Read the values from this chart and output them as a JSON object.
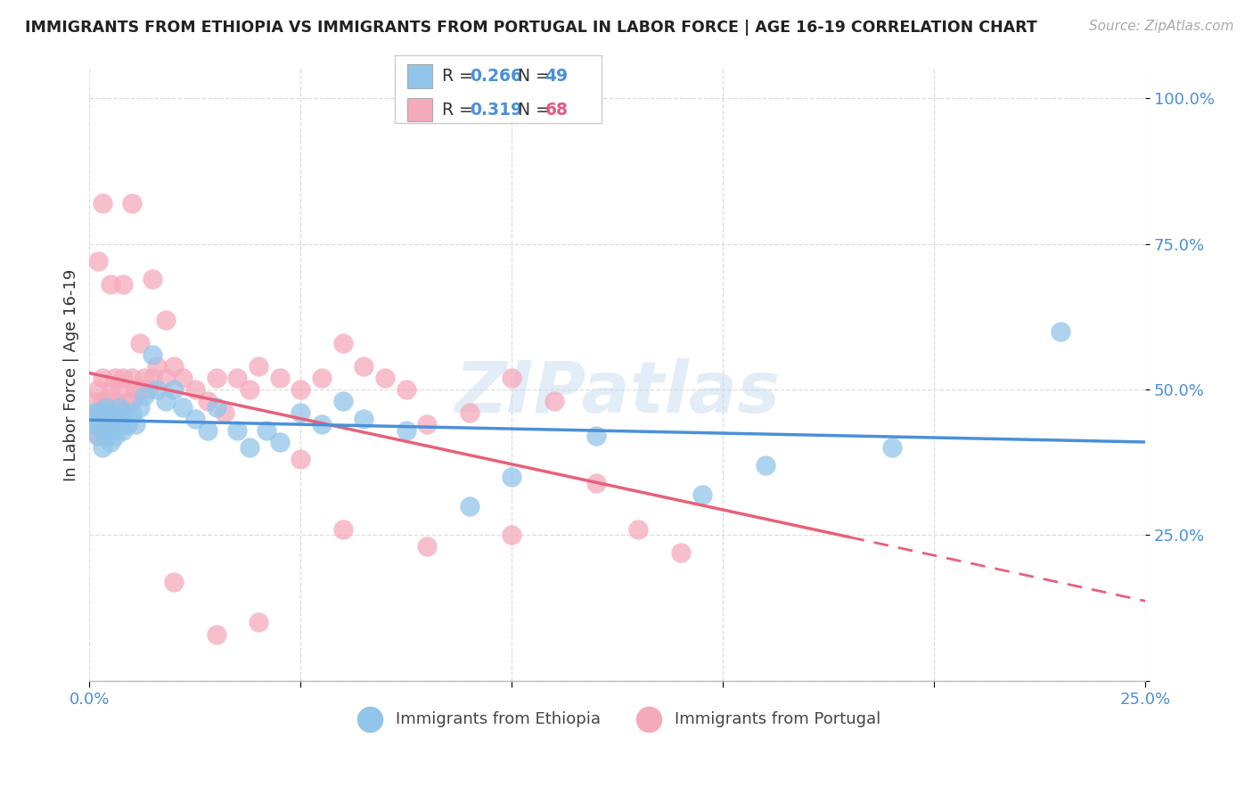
{
  "title": "IMMIGRANTS FROM ETHIOPIA VS IMMIGRANTS FROM PORTUGAL IN LABOR FORCE | AGE 16-19 CORRELATION CHART",
  "source": "Source: ZipAtlas.com",
  "ylabel": "In Labor Force | Age 16-19",
  "xlim": [
    0.0,
    0.25
  ],
  "ylim": [
    0.0,
    1.05
  ],
  "yticks": [
    0.0,
    0.25,
    0.5,
    0.75,
    1.0
  ],
  "ytick_labels": [
    "",
    "25.0%",
    "50.0%",
    "75.0%",
    "100.0%"
  ],
  "xticks": [
    0.0,
    0.05,
    0.1,
    0.15,
    0.2,
    0.25
  ],
  "xtick_labels": [
    "0.0%",
    "",
    "",
    "",
    "",
    "25.0%"
  ],
  "color_ethiopia": "#92C5EA",
  "color_portugal": "#F5AABB",
  "color_line_ethiopia": "#4A90D9",
  "color_line_portugal": "#E8607A",
  "watermark": "ZIPatlas",
  "ethiopia_x": [
    0.001,
    0.001,
    0.002,
    0.002,
    0.002,
    0.003,
    0.003,
    0.003,
    0.004,
    0.004,
    0.004,
    0.005,
    0.005,
    0.005,
    0.006,
    0.006,
    0.007,
    0.007,
    0.008,
    0.008,
    0.009,
    0.01,
    0.011,
    0.012,
    0.013,
    0.015,
    0.016,
    0.018,
    0.02,
    0.022,
    0.025,
    0.028,
    0.03,
    0.035,
    0.038,
    0.042,
    0.045,
    0.05,
    0.055,
    0.06,
    0.065,
    0.075,
    0.09,
    0.1,
    0.12,
    0.145,
    0.16,
    0.19,
    0.23
  ],
  "ethiopia_y": [
    0.44,
    0.46,
    0.42,
    0.44,
    0.46,
    0.4,
    0.43,
    0.46,
    0.42,
    0.44,
    0.47,
    0.41,
    0.43,
    0.46,
    0.42,
    0.45,
    0.44,
    0.47,
    0.43,
    0.46,
    0.44,
    0.46,
    0.44,
    0.47,
    0.49,
    0.56,
    0.5,
    0.48,
    0.5,
    0.47,
    0.45,
    0.43,
    0.47,
    0.43,
    0.4,
    0.43,
    0.41,
    0.46,
    0.44,
    0.48,
    0.45,
    0.43,
    0.3,
    0.35,
    0.42,
    0.32,
    0.37,
    0.4,
    0.6
  ],
  "portugal_x": [
    0.001,
    0.001,
    0.002,
    0.002,
    0.002,
    0.003,
    0.003,
    0.003,
    0.004,
    0.004,
    0.005,
    0.005,
    0.005,
    0.006,
    0.006,
    0.007,
    0.007,
    0.008,
    0.008,
    0.009,
    0.009,
    0.01,
    0.01,
    0.011,
    0.012,
    0.013,
    0.014,
    0.015,
    0.016,
    0.018,
    0.02,
    0.022,
    0.025,
    0.028,
    0.03,
    0.032,
    0.035,
    0.038,
    0.04,
    0.045,
    0.05,
    0.055,
    0.06,
    0.065,
    0.07,
    0.075,
    0.08,
    0.09,
    0.1,
    0.11,
    0.12,
    0.13,
    0.14,
    0.05,
    0.06,
    0.08,
    0.1,
    0.04,
    0.03,
    0.02,
    0.015,
    0.01,
    0.008,
    0.005,
    0.003,
    0.002,
    0.012,
    0.018
  ],
  "portugal_y": [
    0.44,
    0.48,
    0.42,
    0.46,
    0.5,
    0.44,
    0.48,
    0.52,
    0.44,
    0.48,
    0.46,
    0.5,
    0.44,
    0.48,
    0.52,
    0.46,
    0.5,
    0.46,
    0.52,
    0.48,
    0.44,
    0.48,
    0.52,
    0.5,
    0.5,
    0.52,
    0.5,
    0.52,
    0.54,
    0.52,
    0.54,
    0.52,
    0.5,
    0.48,
    0.52,
    0.46,
    0.52,
    0.5,
    0.54,
    0.52,
    0.5,
    0.52,
    0.58,
    0.54,
    0.52,
    0.5,
    0.44,
    0.46,
    0.52,
    0.48,
    0.34,
    0.26,
    0.22,
    0.38,
    0.26,
    0.23,
    0.25,
    0.1,
    0.08,
    0.17,
    0.69,
    0.82,
    0.68,
    0.68,
    0.82,
    0.72,
    0.58,
    0.62
  ]
}
